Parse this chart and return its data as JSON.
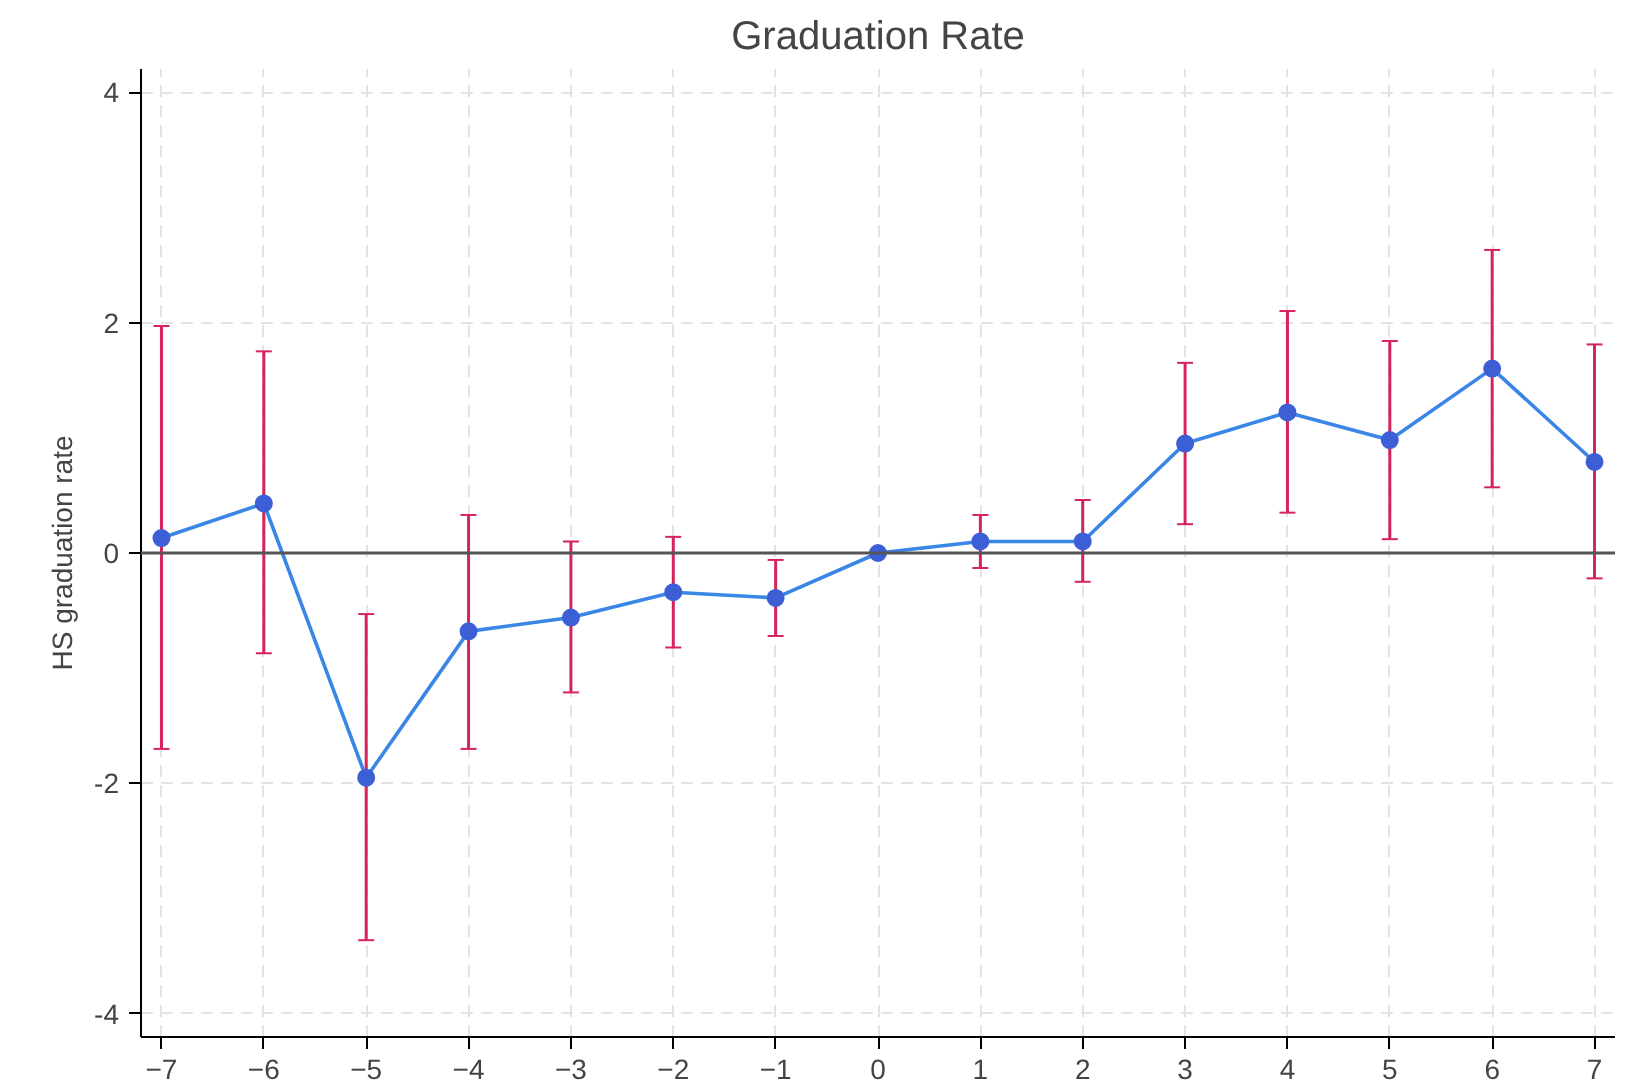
{
  "chart_data": {
    "type": "line",
    "title": "Graduation Rate",
    "ylabel": "HS graduation rate",
    "x": [
      -7,
      -6,
      -5,
      -4,
      -3,
      -2,
      -1,
      0,
      1,
      2,
      3,
      4,
      5,
      6,
      7
    ],
    "series": [
      {
        "color": "#3a86e6",
        "values": [
          0.13,
          0.43,
          -1.95,
          -0.68,
          -0.56,
          -0.34,
          -0.39,
          0,
          0.1,
          0.1,
          0.95,
          1.22,
          0.98,
          1.6,
          0.79
        ],
        "errors": [
          [
            -1.7,
            1.97
          ],
          [
            -0.87,
            1.75
          ],
          [
            -3.36,
            -0.53
          ],
          [
            -1.7,
            0.33
          ],
          [
            -1.21,
            0.1
          ],
          [
            -0.82,
            0.14
          ],
          [
            -0.72,
            -0.06
          ],
          null,
          [
            -0.13,
            0.33
          ],
          [
            -0.25,
            0.46
          ],
          [
            0.25,
            1.65
          ],
          [
            0.35,
            2.1
          ],
          [
            0.12,
            1.84
          ],
          [
            0.57,
            2.63
          ],
          [
            -0.22,
            1.81
          ]
        ]
      }
    ],
    "xlim": [
      -7.2,
      7.2
    ],
    "ylim": [
      -4.2,
      4.2
    ],
    "xticks": [
      -7,
      -6,
      -5,
      -4,
      -3,
      -2,
      -1,
      0,
      1,
      2,
      3,
      4,
      5,
      6,
      7
    ],
    "yticks": [
      -4,
      -2,
      0,
      2,
      4
    ],
    "ref_lines": [
      {
        "axis": "y",
        "value": 0,
        "color": "#555555"
      }
    ],
    "grid": true,
    "marker": "circle",
    "line_style": "solid"
  }
}
